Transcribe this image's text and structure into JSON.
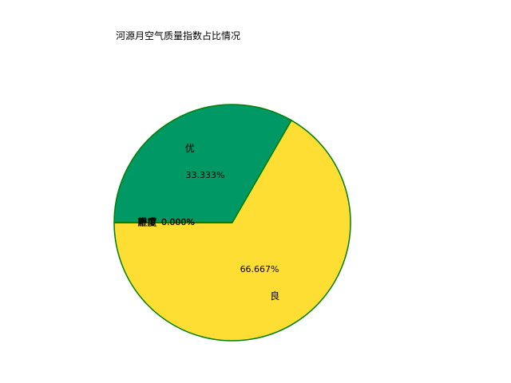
{
  "chart_data": {
    "type": "pie",
    "title": "河源月空气质量指数占比情况",
    "categories": [
      "优",
      "良",
      "轻度",
      "中度",
      "重度",
      "严重"
    ],
    "values": [
      33.333,
      66.667,
      0.0,
      0.0,
      0.0,
      0.0
    ],
    "percent_labels": [
      "33.333%",
      "66.667%",
      "0.000%",
      "0.000%",
      "0.000%",
      "0.000%"
    ],
    "colors": [
      "#009966",
      "#FFDE33",
      "#FF9933",
      "#CC0033",
      "#660099",
      "#7E0023"
    ],
    "edge_color": "#008000",
    "start_angle_deg": 180,
    "direction": "clockwise",
    "legend": "none"
  }
}
